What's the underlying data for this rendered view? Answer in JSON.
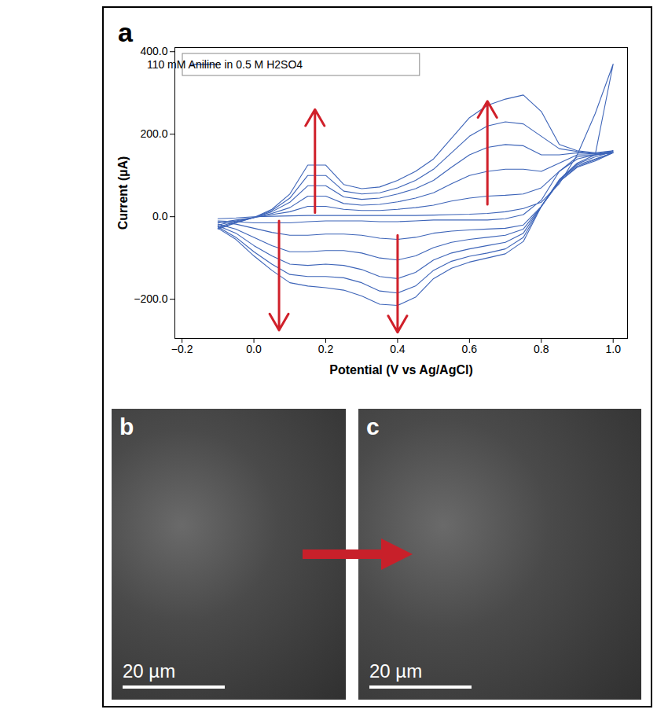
{
  "chart_data": {
    "type": "line",
    "xlabel": "Potential (V vs Ag/AgCl)",
    "ylabel": "Current (µA)",
    "legend": "top-left",
    "x": [
      -0.1,
      -0.05,
      0,
      0.05,
      0.1,
      0.15,
      0.2,
      0.25,
      0.3,
      0.35,
      0.4,
      0.45,
      0.5,
      0.55,
      0.6,
      0.65,
      0.7,
      0.75,
      0.8,
      0.85,
      0.9,
      0.95,
      1.0,
      0.95,
      0.9,
      0.85,
      0.8,
      0.75,
      0.7,
      0.65,
      0.6,
      0.55,
      0.5,
      0.45,
      0.4,
      0.35,
      0.3,
      0.25,
      0.2,
      0.15,
      0.1,
      0.05,
      0,
      -0.05,
      -0.1
    ],
    "series": [
      {
        "name": "110 mM Aniline in 0.5 M H2SO4",
        "color": "#3d64b8",
        "cycles": [
          [
            -5,
            -3,
            0,
            1,
            2,
            3,
            3,
            3,
            3,
            3,
            3,
            3,
            4,
            5,
            6,
            8,
            12,
            20,
            35,
            80,
            150,
            250,
            370,
            150,
            140,
            110,
            40,
            5,
            -5,
            -8,
            -8,
            -8,
            -8,
            -10,
            -12,
            -12,
            -10,
            -10,
            -10,
            -12,
            -15,
            -15,
            -15,
            -12,
            -10
          ],
          [
            -15,
            -8,
            -2,
            5,
            12,
            25,
            25,
            18,
            15,
            15,
            18,
            22,
            28,
            38,
            45,
            50,
            52,
            55,
            70,
            110,
            145,
            150,
            155,
            135,
            120,
            85,
            25,
            -20,
            -28,
            -30,
            -32,
            -35,
            -40,
            -50,
            -55,
            -52,
            -45,
            -42,
            -42,
            -45,
            -45,
            -38,
            -28,
            -18,
            -12
          ],
          [
            -20,
            -10,
            -2,
            8,
            22,
            50,
            50,
            32,
            28,
            30,
            36,
            45,
            58,
            80,
            100,
            110,
            115,
            115,
            110,
            130,
            150,
            150,
            155,
            138,
            122,
            85,
            25,
            -30,
            -45,
            -50,
            -55,
            -62,
            -75,
            -95,
            -105,
            -100,
            -88,
            -82,
            -82,
            -85,
            -85,
            -70,
            -50,
            -30,
            -18
          ],
          [
            -25,
            -12,
            -2,
            12,
            35,
            75,
            75,
            48,
            42,
            45,
            55,
            68,
            88,
            120,
            150,
            168,
            175,
            172,
            150,
            150,
            155,
            152,
            155,
            140,
            125,
            88,
            25,
            -40,
            -62,
            -70,
            -78,
            -88,
            -105,
            -135,
            -150,
            -145,
            -128,
            -118,
            -115,
            -118,
            -115,
            -95,
            -70,
            -40,
            -22
          ],
          [
            -28,
            -14,
            -2,
            15,
            45,
            100,
            100,
            62,
            55,
            58,
            70,
            88,
            115,
            155,
            195,
            220,
            230,
            225,
            195,
            165,
            158,
            153,
            158,
            145,
            128,
            88,
            25,
            -50,
            -78,
            -88,
            -96,
            -108,
            -130,
            -168,
            -185,
            -180,
            -160,
            -148,
            -145,
            -145,
            -140,
            -115,
            -85,
            -50,
            -25
          ],
          [
            -30,
            -15,
            -2,
            18,
            55,
            125,
            125,
            78,
            68,
            72,
            88,
            110,
            140,
            190,
            240,
            270,
            285,
            295,
            255,
            175,
            160,
            155,
            160,
            150,
            130,
            90,
            25,
            -60,
            -90,
            -100,
            -110,
            -125,
            -150,
            -195,
            -215,
            -212,
            -192,
            -178,
            -172,
            -168,
            -160,
            -130,
            -95,
            -55,
            -28
          ]
        ]
      }
    ],
    "arrows": [
      {
        "x": 0.17,
        "y1": 10,
        "y2": 260
      },
      {
        "x": 0.65,
        "y1": 30,
        "y2": 280
      },
      {
        "x": 0.07,
        "y1": -10,
        "y2": -275
      },
      {
        "x": 0.4,
        "y1": -45,
        "y2": -280
      }
    ],
    "xlim": [
      -0.22,
      1.04
    ],
    "ylim": [
      -295,
      410
    ],
    "xticks": [
      {
        "value": -0.2,
        "label": "−0.2"
      },
      {
        "value": 0,
        "label": "0.0"
      },
      {
        "value": 0.2,
        "label": "0.2"
      },
      {
        "value": 0.4,
        "label": "0.4"
      },
      {
        "value": 0.6,
        "label": "0.6"
      },
      {
        "value": 0.8,
        "label": "0.8"
      },
      {
        "value": 1.0,
        "label": "1.0"
      }
    ],
    "yticks": [
      {
        "value": -200,
        "label": "−200.0"
      },
      {
        "value": 0,
        "label": "0.0"
      },
      {
        "value": 200,
        "label": "200.0"
      },
      {
        "value": 400,
        "label": "400.0"
      }
    ]
  },
  "panel_label": "a",
  "images": [
    {
      "label": "b",
      "scale_bar": "20 µm"
    },
    {
      "label": "c",
      "scale_bar": "20 µm"
    }
  ]
}
